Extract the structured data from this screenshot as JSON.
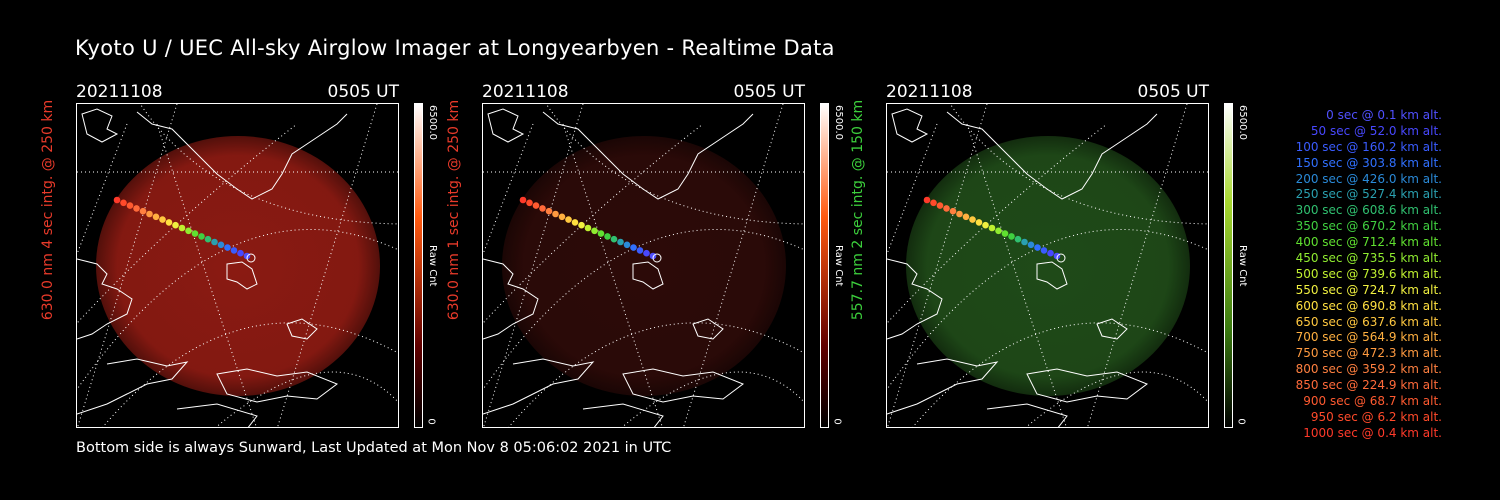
{
  "title": "Kyoto U / UEC All-sky Airglow Imager at Longyearbyen - Realtime Data",
  "footer": "Bottom side is always Sunward, Last Updated at Mon Nov  8 05:06:02 2021 in UTC",
  "panels": [
    {
      "date": "20211108",
      "time": "0505 UT",
      "ylabel": "630.0 nm 4 sec intg. @ 250 km",
      "label_color": "#e83a2a",
      "cbar_max": "6500.0",
      "cbar_min": "0",
      "cbar_unit": "Raw Cnt",
      "glow_color": "#8a1a12",
      "cbar_top": "#ff5a10"
    },
    {
      "date": "20211108",
      "time": "0505 UT",
      "ylabel": "630.0 nm 1 sec intg. @ 250 km",
      "label_color": "#e83a2a",
      "cbar_max": "6500.0",
      "cbar_min": "0",
      "cbar_unit": "Raw Cnt",
      "glow_color": "#2c0a08",
      "cbar_top": "#ff5a10"
    },
    {
      "date": "20211108",
      "time": "0505 UT",
      "ylabel": "557.7 nm 2 sec intg. @ 150 km",
      "label_color": "#3ccf3c",
      "cbar_max": "6500.0",
      "cbar_min": "0",
      "cbar_unit": "Raw Cnt",
      "glow_color": "#1f4a18",
      "cbar_top": "#55a018"
    }
  ],
  "legend": [
    {
      "text": "0 sec @   0.1 km alt.",
      "color": "#5050ff"
    },
    {
      "text": "50 sec @  52.0 km alt.",
      "color": "#4848ff"
    },
    {
      "text": "100 sec @ 160.2 km alt.",
      "color": "#3a5cff"
    },
    {
      "text": "150 sec @ 303.8 km alt.",
      "color": "#3070ff"
    },
    {
      "text": "200 sec @ 426.0 km alt.",
      "color": "#2a8ad8"
    },
    {
      "text": "250 sec @ 527.4 km alt.",
      "color": "#2aa0b0"
    },
    {
      "text": "300 sec @ 608.6 km alt.",
      "color": "#30c070"
    },
    {
      "text": "350 sec @ 670.2 km alt.",
      "color": "#40d040"
    },
    {
      "text": "400 sec @ 712.4 km alt.",
      "color": "#60e030"
    },
    {
      "text": "450 sec @ 735.5 km alt.",
      "color": "#90ec30"
    },
    {
      "text": "500 sec @ 739.6 km alt.",
      "color": "#c0f030"
    },
    {
      "text": "550 sec @ 724.7 km alt.",
      "color": "#f0f040"
    },
    {
      "text": "600 sec @ 690.8 km alt.",
      "color": "#ffe040"
    },
    {
      "text": "650 sec @ 637.6 km alt.",
      "color": "#ffc840"
    },
    {
      "text": "700 sec @ 564.9 km alt.",
      "color": "#ffb040"
    },
    {
      "text": "750 sec @ 472.3 km alt.",
      "color": "#ff9a40"
    },
    {
      "text": "800 sec @ 359.2 km alt.",
      "color": "#ff8040"
    },
    {
      "text": "850 sec @ 224.9 km alt.",
      "color": "#ff6a3a"
    },
    {
      "text": "900 sec @  68.7 km alt.",
      "color": "#ff5a30"
    },
    {
      "text": "950 sec @   6.2 km alt.",
      "color": "#ff4a2a"
    },
    {
      "text": "1000 sec @   0.4 km alt.",
      "color": "#ff3a2a"
    }
  ]
}
